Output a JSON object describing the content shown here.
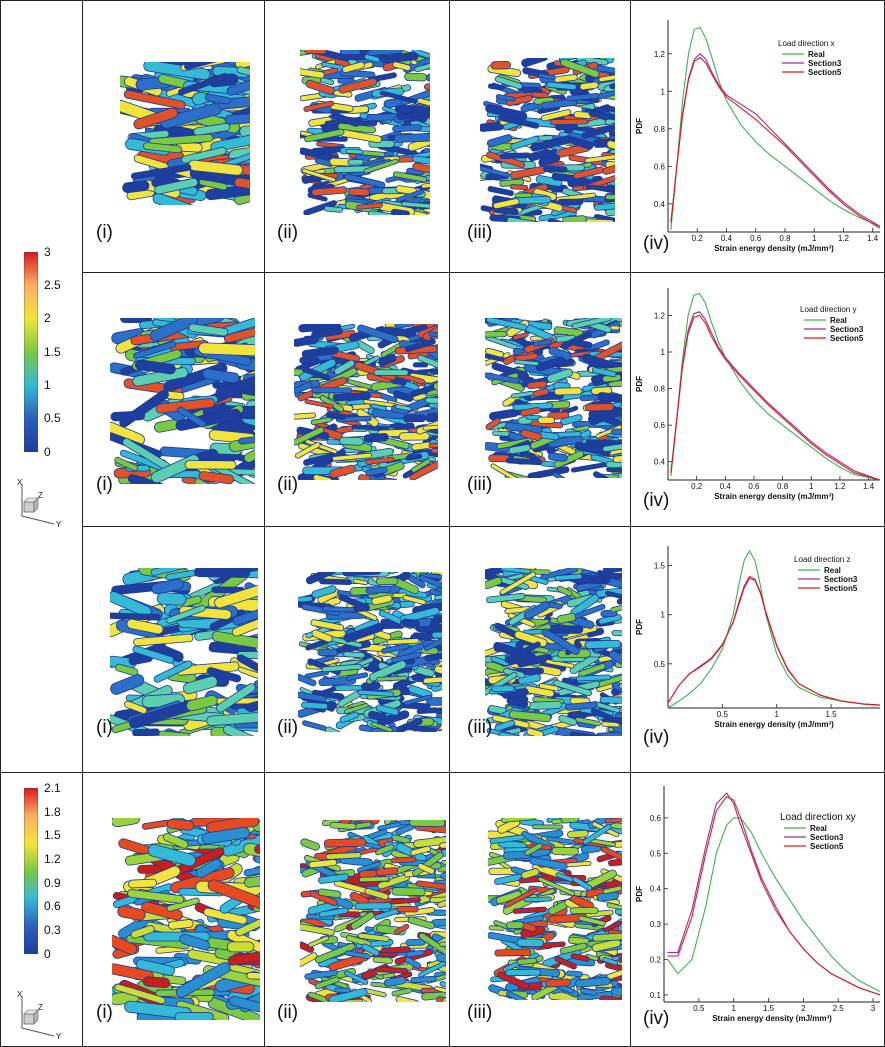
{
  "panel_labels": [
    "(i)",
    "(ii)",
    "(iii)",
    "(iv)"
  ],
  "colorbars": [
    {
      "ticks": [
        "3",
        "2.5",
        "2",
        "1.5",
        "1",
        "0.5",
        "0"
      ],
      "colors": [
        "#d7191c",
        "#fdae61",
        "#f1e43c",
        "#7ac943",
        "#34b9d6",
        "#2b5fb8",
        "#1f3fa0"
      ]
    },
    {
      "ticks": [
        "2.1",
        "1.8",
        "1.5",
        "1.2",
        "0.9",
        "0.6",
        "0.3",
        "0"
      ],
      "colors": [
        "#d7191c",
        "#fdae61",
        "#f1e43c",
        "#7ac943",
        "#34b9d6",
        "#2b5fb8",
        "#1f3fa0"
      ]
    }
  ],
  "axes_triad": {
    "x": "X",
    "y": "Y",
    "z": "Z"
  },
  "blob_palettes": [
    {
      "row": "x",
      "colors": [
        "#1f3fa0",
        "#2b6fc8",
        "#34b9d6",
        "#5ccfb0",
        "#7ac943",
        "#f1e43c",
        "#e0522a"
      ]
    },
    {
      "row": "y",
      "colors": [
        "#1f3fa0",
        "#2b6fc8",
        "#34b9d6",
        "#5ccfb0",
        "#7ac943",
        "#f1e43c",
        "#e0522a"
      ]
    },
    {
      "row": "z",
      "colors": [
        "#1f3fa0",
        "#2b6fc8",
        "#34b9d6",
        "#5ccfb0",
        "#7ac943",
        "#f1e43c"
      ]
    },
    {
      "row": "xy",
      "colors": [
        "#2a8fd0",
        "#34b9d6",
        "#7ac943",
        "#9bd33a",
        "#c9de35",
        "#f1e43c",
        "#e84a1f",
        "#c81e1e"
      ]
    }
  ],
  "chart_data": [
    {
      "type": "line",
      "legend_title": "Load direction x",
      "xlabel": "Strain energy density (mJ/mm³)",
      "ylabel": "PDF",
      "xlim": [
        0,
        1.45
      ],
      "ylim": [
        0.25,
        1.38
      ],
      "xticks": [
        0.2,
        0.4,
        0.6,
        0.8,
        1,
        1.2,
        1.4
      ],
      "xtick_labels": [
        "0.2",
        "0.4",
        "0.6",
        "0.8",
        "1",
        "1.2",
        "1.4"
      ],
      "yticks": [
        0.4,
        0.6,
        0.8,
        1,
        1.2
      ],
      "ytick_labels": [
        "0.4",
        "0.6",
        "0.8",
        "1",
        "1.2"
      ],
      "series": [
        {
          "name": "Real",
          "color": "#3cb44b",
          "x": [
            0.02,
            0.06,
            0.1,
            0.14,
            0.18,
            0.22,
            0.26,
            0.3,
            0.35,
            0.4,
            0.5,
            0.6,
            0.7,
            0.8,
            0.9,
            1.0,
            1.1,
            1.2,
            1.3,
            1.45
          ],
          "y": [
            0.26,
            0.6,
            0.95,
            1.2,
            1.33,
            1.34,
            1.28,
            1.18,
            1.05,
            0.95,
            0.82,
            0.73,
            0.66,
            0.6,
            0.54,
            0.48,
            0.42,
            0.37,
            0.33,
            0.28
          ]
        },
        {
          "name": "Section3",
          "color": "#9b2d9b",
          "x": [
            0.02,
            0.06,
            0.1,
            0.14,
            0.18,
            0.22,
            0.26,
            0.3,
            0.35,
            0.4,
            0.5,
            0.6,
            0.7,
            0.8,
            0.9,
            1.0,
            1.1,
            1.2,
            1.3,
            1.45
          ],
          "y": [
            0.3,
            0.6,
            0.88,
            1.07,
            1.17,
            1.2,
            1.17,
            1.1,
            1.03,
            0.98,
            0.93,
            0.88,
            0.8,
            0.72,
            0.64,
            0.56,
            0.48,
            0.41,
            0.35,
            0.28
          ]
        },
        {
          "name": "Section5",
          "color": "#e31a1c",
          "x": [
            0.02,
            0.06,
            0.1,
            0.14,
            0.18,
            0.22,
            0.26,
            0.3,
            0.35,
            0.4,
            0.5,
            0.6,
            0.7,
            0.8,
            0.9,
            1.0,
            1.1,
            1.2,
            1.3,
            1.45
          ],
          "y": [
            0.3,
            0.6,
            0.87,
            1.06,
            1.16,
            1.18,
            1.15,
            1.09,
            1.02,
            0.97,
            0.91,
            0.85,
            0.78,
            0.71,
            0.63,
            0.55,
            0.47,
            0.4,
            0.34,
            0.27
          ]
        }
      ]
    },
    {
      "type": "line",
      "legend_title": "Load direction y",
      "xlabel": "Strain energy density (mJ/mm³)",
      "ylabel": "PDF",
      "xlim": [
        0,
        1.48
      ],
      "ylim": [
        0.3,
        1.35
      ],
      "xticks": [
        0.2,
        0.4,
        0.6,
        0.8,
        1,
        1.2,
        1.4
      ],
      "xtick_labels": [
        "0.2",
        "0.4",
        "0.6",
        "0.8",
        "1",
        "1.2",
        "1.4"
      ],
      "yticks": [
        0.4,
        0.6,
        0.8,
        1,
        1.2
      ],
      "ytick_labels": [
        "0.4",
        "0.6",
        "0.8",
        "1",
        "1.2"
      ],
      "series": [
        {
          "name": "Real",
          "color": "#3cb44b",
          "x": [
            0.02,
            0.06,
            0.1,
            0.14,
            0.18,
            0.22,
            0.26,
            0.3,
            0.35,
            0.4,
            0.5,
            0.6,
            0.7,
            0.8,
            0.9,
            1.0,
            1.1,
            1.2,
            1.3,
            1.48
          ],
          "y": [
            0.32,
            0.62,
            0.95,
            1.2,
            1.31,
            1.32,
            1.27,
            1.17,
            1.06,
            0.97,
            0.84,
            0.74,
            0.66,
            0.6,
            0.54,
            0.48,
            0.42,
            0.37,
            0.33,
            0.3
          ]
        },
        {
          "name": "Section3",
          "color": "#9b2d9b",
          "x": [
            0.02,
            0.06,
            0.1,
            0.14,
            0.18,
            0.22,
            0.26,
            0.3,
            0.35,
            0.4,
            0.5,
            0.6,
            0.7,
            0.8,
            0.9,
            1.0,
            1.1,
            1.2,
            1.3,
            1.48
          ],
          "y": [
            0.34,
            0.63,
            0.92,
            1.12,
            1.21,
            1.22,
            1.18,
            1.11,
            1.03,
            0.97,
            0.88,
            0.8,
            0.72,
            0.65,
            0.58,
            0.51,
            0.45,
            0.4,
            0.35,
            0.3
          ]
        },
        {
          "name": "Section5",
          "color": "#e31a1c",
          "x": [
            0.02,
            0.06,
            0.1,
            0.14,
            0.18,
            0.22,
            0.26,
            0.3,
            0.35,
            0.4,
            0.5,
            0.6,
            0.7,
            0.8,
            0.9,
            1.0,
            1.1,
            1.2,
            1.3,
            1.48
          ],
          "y": [
            0.34,
            0.62,
            0.91,
            1.1,
            1.19,
            1.2,
            1.16,
            1.09,
            1.02,
            0.96,
            0.87,
            0.79,
            0.71,
            0.64,
            0.57,
            0.5,
            0.44,
            0.39,
            0.34,
            0.3
          ]
        }
      ]
    },
    {
      "type": "line",
      "legend_title": "Load direction z",
      "xlabel": "Strain energy density (mJ/mm³)",
      "ylabel": "PDF",
      "xlim": [
        0,
        1.95
      ],
      "ylim": [
        0.05,
        1.7
      ],
      "xticks": [
        0.5,
        1,
        1.5
      ],
      "xtick_labels": [
        "0.5",
        "1",
        "1.5"
      ],
      "yticks": [
        0.5,
        1,
        1.5
      ],
      "ytick_labels": [
        "0.5",
        "1",
        "1.5"
      ],
      "series": [
        {
          "name": "Real",
          "color": "#3cb44b",
          "x": [
            0,
            0.1,
            0.2,
            0.3,
            0.4,
            0.5,
            0.6,
            0.65,
            0.7,
            0.75,
            0.8,
            0.85,
            0.9,
            1.0,
            1.1,
            1.2,
            1.4,
            1.6,
            1.8,
            1.95
          ],
          "y": [
            0.05,
            0.12,
            0.2,
            0.3,
            0.45,
            0.65,
            1.0,
            1.3,
            1.55,
            1.65,
            1.55,
            1.3,
            1.0,
            0.6,
            0.38,
            0.26,
            0.16,
            0.12,
            0.09,
            0.08
          ]
        },
        {
          "name": "Section3",
          "color": "#9b2d9b",
          "x": [
            0,
            0.1,
            0.2,
            0.3,
            0.4,
            0.5,
            0.6,
            0.65,
            0.7,
            0.75,
            0.8,
            0.85,
            0.9,
            1.0,
            1.1,
            1.2,
            1.4,
            1.6,
            1.8,
            1.95
          ],
          "y": [
            0.1,
            0.28,
            0.4,
            0.48,
            0.56,
            0.7,
            0.92,
            1.1,
            1.27,
            1.37,
            1.35,
            1.22,
            1.02,
            0.68,
            0.44,
            0.3,
            0.18,
            0.12,
            0.09,
            0.08
          ]
        },
        {
          "name": "Section5",
          "color": "#e31a1c",
          "x": [
            0,
            0.1,
            0.2,
            0.3,
            0.4,
            0.5,
            0.6,
            0.65,
            0.7,
            0.75,
            0.8,
            0.85,
            0.9,
            1.0,
            1.1,
            1.2,
            1.4,
            1.6,
            1.8,
            1.95
          ],
          "y": [
            0.1,
            0.28,
            0.4,
            0.47,
            0.55,
            0.69,
            0.93,
            1.12,
            1.29,
            1.39,
            1.36,
            1.23,
            1.03,
            0.69,
            0.45,
            0.3,
            0.18,
            0.12,
            0.09,
            0.08
          ]
        }
      ]
    },
    {
      "type": "line",
      "legend_title": "Load direction xy",
      "xlabel": "Strain energy density (mJ/mm³)",
      "ylabel": "PDF",
      "xlim": [
        0,
        3.1
      ],
      "ylim": [
        0.08,
        0.69
      ],
      "xticks": [
        0.5,
        1,
        1.5,
        2,
        2.5,
        3
      ],
      "xtick_labels": [
        "0.5",
        "1",
        "1.5",
        "2",
        "2.5",
        "3"
      ],
      "yticks": [
        0.1,
        0.2,
        0.3,
        0.4,
        0.5,
        0.6
      ],
      "ytick_labels": [
        "0.1",
        "0.2",
        "0.3",
        "0.4",
        "0.5",
        "0.6"
      ],
      "series": [
        {
          "name": "Real",
          "color": "#3cb44b",
          "x": [
            0.05,
            0.2,
            0.4,
            0.6,
            0.75,
            0.9,
            1.0,
            1.1,
            1.25,
            1.4,
            1.6,
            1.8,
            2.0,
            2.2,
            2.4,
            2.6,
            2.8,
            3.1
          ],
          "y": [
            0.2,
            0.16,
            0.2,
            0.35,
            0.5,
            0.58,
            0.6,
            0.6,
            0.56,
            0.5,
            0.43,
            0.37,
            0.31,
            0.26,
            0.21,
            0.17,
            0.14,
            0.11
          ]
        },
        {
          "name": "Section3",
          "color": "#9b2d9b",
          "x": [
            0.05,
            0.2,
            0.4,
            0.6,
            0.75,
            0.9,
            1.0,
            1.1,
            1.25,
            1.4,
            1.6,
            1.8,
            2.0,
            2.2,
            2.4,
            2.6,
            2.8,
            3.1
          ],
          "y": [
            0.22,
            0.22,
            0.34,
            0.52,
            0.64,
            0.67,
            0.64,
            0.58,
            0.5,
            0.42,
            0.34,
            0.28,
            0.23,
            0.19,
            0.16,
            0.14,
            0.12,
            0.1
          ]
        },
        {
          "name": "Section5",
          "color": "#e31a1c",
          "x": [
            0.05,
            0.2,
            0.4,
            0.6,
            0.75,
            0.9,
            1.0,
            1.1,
            1.25,
            1.4,
            1.6,
            1.8,
            2.0,
            2.2,
            2.4,
            2.6,
            2.8,
            3.1
          ],
          "y": [
            0.21,
            0.21,
            0.32,
            0.5,
            0.62,
            0.66,
            0.65,
            0.6,
            0.51,
            0.43,
            0.35,
            0.28,
            0.23,
            0.19,
            0.16,
            0.14,
            0.12,
            0.1
          ]
        }
      ]
    }
  ]
}
